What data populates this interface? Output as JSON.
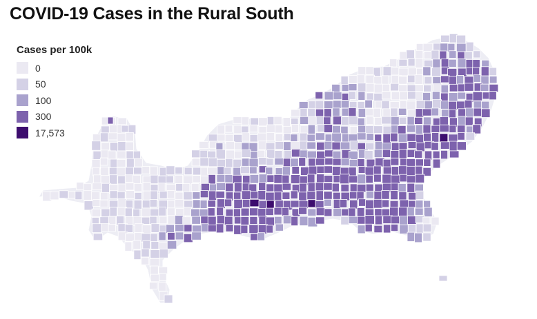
{
  "title": "COVID-19 Cases in the Rural South",
  "legend": {
    "title": "Cases per 100k",
    "items": [
      {
        "label": "0",
        "color": "#ebe9f2"
      },
      {
        "label": "50",
        "color": "#d4d1e6"
      },
      {
        "label": "100",
        "color": "#a9a2cd"
      },
      {
        "label": "300",
        "color": "#7d62ad"
      },
      {
        "label": "17,573",
        "color": "#3d0d6e"
      }
    ]
  },
  "map": {
    "type": "choropleth",
    "region": "Rural South counties",
    "value_bins": [
      0,
      50,
      100,
      300,
      17573
    ],
    "border_color": "#ffffff"
  }
}
